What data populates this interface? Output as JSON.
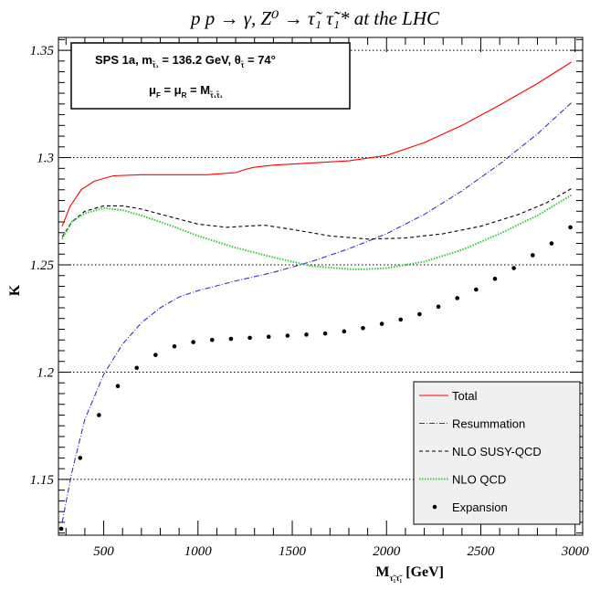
{
  "chart_data": {
    "type": "line",
    "title": "p p → γ, Z⁰ → τ̃₁ τ̃₁* at the LHC",
    "xlabel": "M",
    "xlabel_sub": "τ̃₁τ̃₁",
    "xlabel_unit": " [GeV]",
    "ylabel": "K",
    "xlim": [
      260,
      3040
    ],
    "ylim": [
      1.124,
      1.356
    ],
    "xticks": [
      500,
      1000,
      1500,
      2000,
      2500,
      3000
    ],
    "yticks": [
      1.15,
      1.2,
      1.25,
      1.3,
      1.35
    ],
    "ytick_labels": [
      "1.15",
      "1.2",
      "1.25",
      "1.3",
      "1.35"
    ],
    "grid": "horizontal dotted at major y ticks",
    "info_box": {
      "line1_a": "SPS 1a, m",
      "line1_sub": "τ̃₁",
      "line1_b": " = 136.2 GeV, θ",
      "line1_sub2": "τ̃",
      "line1_c": " =  74°",
      "line2_a": "μ",
      "line2_sub_a": "F",
      "line2_b": " = μ",
      "line2_sub_b": "R",
      "line2_c": " = M",
      "line2_sub_c": "τ̃₁τ̃₁"
    },
    "legend_position": "bottom-right",
    "series": [
      {
        "name": "Total",
        "color": "#ff0000",
        "style": "solid",
        "x": [
          280,
          320,
          380,
          450,
          550,
          700,
          900,
          1050,
          1200,
          1250,
          1300,
          1400,
          1600,
          1800,
          2000,
          2200,
          2400,
          2600,
          2800,
          2980
        ],
        "y": [
          1.268,
          1.277,
          1.285,
          1.289,
          1.2915,
          1.292,
          1.292,
          1.292,
          1.293,
          1.2945,
          1.2955,
          1.2965,
          1.2975,
          1.2985,
          1.301,
          1.307,
          1.315,
          1.3245,
          1.3345,
          1.3445
        ]
      },
      {
        "name": "Resummation",
        "color": "#3333cc",
        "style": "dashdot",
        "x": [
          280,
          330,
          400,
          500,
          600,
          700,
          800,
          900,
          1000,
          1200,
          1400,
          1600,
          1800,
          2000,
          2200,
          2400,
          2600,
          2800,
          2980
        ],
        "y": [
          1.13,
          1.153,
          1.178,
          1.199,
          1.213,
          1.223,
          1.23,
          1.235,
          1.238,
          1.2425,
          1.2465,
          1.2515,
          1.2575,
          1.2645,
          1.2735,
          1.2845,
          1.297,
          1.311,
          1.3255
        ]
      },
      {
        "name": "NLO SUSY-QCD",
        "color": "#000000",
        "style": "dashed",
        "x": [
          280,
          330,
          400,
          500,
          600,
          700,
          850,
          1000,
          1150,
          1250,
          1350,
          1500,
          1700,
          1900,
          2100,
          2300,
          2500,
          2700,
          2850,
          2980
        ],
        "y": [
          1.263,
          1.27,
          1.275,
          1.2775,
          1.2775,
          1.276,
          1.2725,
          1.269,
          1.2675,
          1.268,
          1.2685,
          1.2665,
          1.2635,
          1.262,
          1.2625,
          1.2645,
          1.268,
          1.2735,
          1.279,
          1.2855
        ]
      },
      {
        "name": "NLO QCD",
        "color": "#33cc33",
        "style": "dotted",
        "x": [
          280,
          330,
          400,
          500,
          600,
          700,
          850,
          1000,
          1200,
          1400,
          1600,
          1800,
          1900,
          2000,
          2200,
          2400,
          2600,
          2800,
          2980
        ],
        "y": [
          1.262,
          1.27,
          1.274,
          1.2765,
          1.2755,
          1.273,
          1.2685,
          1.2635,
          1.258,
          1.2535,
          1.2495,
          1.248,
          1.248,
          1.2485,
          1.2515,
          1.257,
          1.2645,
          1.273,
          1.2825
        ]
      },
      {
        "name": "Expansion",
        "color": "#000000",
        "style": "points",
        "x": [
          275,
          375,
          475,
          575,
          675,
          775,
          875,
          975,
          1075,
          1175,
          1275,
          1375,
          1475,
          1575,
          1675,
          1775,
          1875,
          1975,
          2075,
          2175,
          2275,
          2375,
          2475,
          2575,
          2675,
          2775,
          2875,
          2975
        ],
        "y": [
          1.127,
          1.16,
          1.18,
          1.1935,
          1.202,
          1.208,
          1.212,
          1.214,
          1.215,
          1.2155,
          1.216,
          1.2165,
          1.217,
          1.2175,
          1.218,
          1.219,
          1.2205,
          1.2225,
          1.2245,
          1.227,
          1.2305,
          1.2345,
          1.2385,
          1.2435,
          1.2485,
          1.2545,
          1.26,
          1.2675
        ]
      }
    ]
  }
}
